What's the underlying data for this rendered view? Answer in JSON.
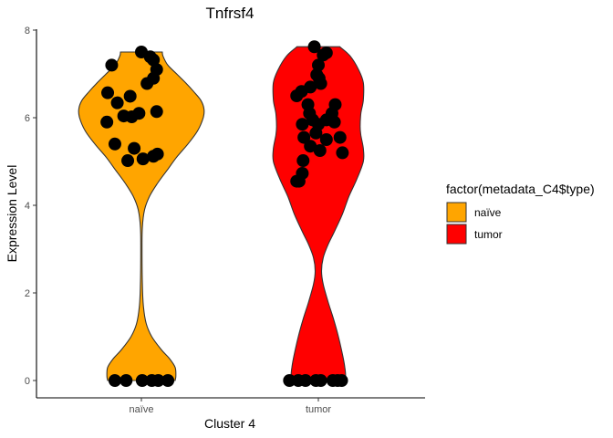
{
  "chart_data": {
    "type": "violin",
    "title": "Tnfrsf4",
    "xlabel": "Cluster 4",
    "ylabel": "Expression Level",
    "ylim": [
      0,
      8
    ],
    "yticks": [
      0,
      2,
      4,
      6,
      8
    ],
    "categories": [
      "naïve",
      "tumor"
    ],
    "legend": {
      "title": "factor(metadata_C4$type)",
      "position": "right",
      "entries": [
        {
          "label": "naïve",
          "color": "#FFA500"
        },
        {
          "label": "tumor",
          "color": "#FF0000"
        }
      ]
    },
    "grid": false,
    "series": [
      {
        "category": "naïve",
        "color": "#FFA500",
        "points": [
          {
            "x": 0.0,
            "y": 7.5
          },
          {
            "x": 0.11,
            "y": 7.39
          },
          {
            "x": 0.19,
            "y": 7.1
          },
          {
            "x": 0.15,
            "y": 7.32
          },
          {
            "x": -0.37,
            "y": 7.2
          },
          {
            "x": 0.07,
            "y": 6.78
          },
          {
            "x": 0.15,
            "y": 6.9
          },
          {
            "x": -0.42,
            "y": 6.57
          },
          {
            "x": -0.14,
            "y": 6.49
          },
          {
            "x": -0.3,
            "y": 6.34
          },
          {
            "x": -0.22,
            "y": 6.04
          },
          {
            "x": -0.03,
            "y": 6.1
          },
          {
            "x": 0.19,
            "y": 6.14
          },
          {
            "x": -0.43,
            "y": 5.9
          },
          {
            "x": -0.12,
            "y": 6.02
          },
          {
            "x": -0.33,
            "y": 5.4
          },
          {
            "x": -0.09,
            "y": 5.3
          },
          {
            "x": 0.2,
            "y": 5.17
          },
          {
            "x": 0.15,
            "y": 5.12
          },
          {
            "x": -0.17,
            "y": 5.02
          },
          {
            "x": 0.02,
            "y": 5.06
          },
          {
            "x": -0.33,
            "y": 0
          },
          {
            "x": -0.19,
            "y": 0
          },
          {
            "x": 0.01,
            "y": 0
          },
          {
            "x": 0.13,
            "y": 0
          },
          {
            "x": 0.21,
            "y": 0
          },
          {
            "x": 0.33,
            "y": 0
          }
        ],
        "density": [
          {
            "y": 0.0,
            "w": 0.42
          },
          {
            "y": 0.1,
            "w": 0.43
          },
          {
            "y": 0.3,
            "w": 0.42
          },
          {
            "y": 0.5,
            "w": 0.35
          },
          {
            "y": 0.7,
            "w": 0.25
          },
          {
            "y": 1.0,
            "w": 0.13
          },
          {
            "y": 1.3,
            "w": 0.06
          },
          {
            "y": 1.7,
            "w": 0.025
          },
          {
            "y": 2.2,
            "w": 0.012
          },
          {
            "y": 3.0,
            "w": 0.008
          },
          {
            "y": 3.5,
            "w": 0.012
          },
          {
            "y": 3.9,
            "w": 0.04
          },
          {
            "y": 4.2,
            "w": 0.1
          },
          {
            "y": 4.5,
            "w": 0.2
          },
          {
            "y": 4.8,
            "w": 0.32
          },
          {
            "y": 5.1,
            "w": 0.44
          },
          {
            "y": 5.4,
            "w": 0.58
          },
          {
            "y": 5.7,
            "w": 0.7
          },
          {
            "y": 6.0,
            "w": 0.77
          },
          {
            "y": 6.2,
            "w": 0.78
          },
          {
            "y": 6.4,
            "w": 0.74
          },
          {
            "y": 6.6,
            "w": 0.65
          },
          {
            "y": 6.8,
            "w": 0.55
          },
          {
            "y": 7.0,
            "w": 0.44
          },
          {
            "y": 7.2,
            "w": 0.33
          },
          {
            "y": 7.4,
            "w": 0.27
          },
          {
            "y": 7.5,
            "w": 0.26
          }
        ]
      },
      {
        "category": "tumor",
        "color": "#FF0000",
        "points": [
          {
            "x": -0.05,
            "y": 7.62
          },
          {
            "x": 0.06,
            "y": 7.43
          },
          {
            "x": 0.1,
            "y": 7.48
          },
          {
            "x": 0.0,
            "y": 7.2
          },
          {
            "x": -0.02,
            "y": 6.98
          },
          {
            "x": 0.01,
            "y": 6.9
          },
          {
            "x": -0.21,
            "y": 6.6
          },
          {
            "x": -0.27,
            "y": 6.5
          },
          {
            "x": -0.1,
            "y": 6.7
          },
          {
            "x": 0.03,
            "y": 6.78
          },
          {
            "x": -0.13,
            "y": 6.3
          },
          {
            "x": 0.21,
            "y": 6.3
          },
          {
            "x": -0.11,
            "y": 6.1
          },
          {
            "x": 0.17,
            "y": 6.1
          },
          {
            "x": -0.2,
            "y": 5.85
          },
          {
            "x": -0.07,
            "y": 5.95
          },
          {
            "x": 0.0,
            "y": 5.85
          },
          {
            "x": 0.1,
            "y": 5.95
          },
          {
            "x": 0.2,
            "y": 5.9
          },
          {
            "x": -0.03,
            "y": 5.65
          },
          {
            "x": 0.1,
            "y": 5.5
          },
          {
            "x": 0.27,
            "y": 5.55
          },
          {
            "x": -0.18,
            "y": 5.55
          },
          {
            "x": -0.1,
            "y": 5.35
          },
          {
            "x": 0.02,
            "y": 5.25
          },
          {
            "x": 0.3,
            "y": 5.2
          },
          {
            "x": -0.19,
            "y": 5.02
          },
          {
            "x": -0.2,
            "y": 4.73
          },
          {
            "x": -0.24,
            "y": 4.55
          },
          {
            "x": -0.27,
            "y": 4.55
          },
          {
            "x": -0.36,
            "y": 0
          },
          {
            "x": -0.25,
            "y": 0
          },
          {
            "x": -0.16,
            "y": 0
          },
          {
            "x": -0.03,
            "y": 0
          },
          {
            "x": 0.03,
            "y": 0
          },
          {
            "x": 0.18,
            "y": 0
          },
          {
            "x": 0.24,
            "y": 0
          },
          {
            "x": 0.29,
            "y": 0
          }
        ],
        "density": [
          {
            "y": 0.0,
            "w": 0.33
          },
          {
            "y": 0.1,
            "w": 0.34
          },
          {
            "y": 0.3,
            "w": 0.33
          },
          {
            "y": 0.6,
            "w": 0.3
          },
          {
            "y": 1.0,
            "w": 0.25
          },
          {
            "y": 1.4,
            "w": 0.19
          },
          {
            "y": 1.8,
            "w": 0.12
          },
          {
            "y": 2.2,
            "w": 0.06
          },
          {
            "y": 2.5,
            "w": 0.04
          },
          {
            "y": 2.8,
            "w": 0.06
          },
          {
            "y": 3.1,
            "w": 0.12
          },
          {
            "y": 3.4,
            "w": 0.2
          },
          {
            "y": 3.8,
            "w": 0.3
          },
          {
            "y": 4.2,
            "w": 0.38
          },
          {
            "y": 4.6,
            "w": 0.48
          },
          {
            "y": 5.0,
            "w": 0.56
          },
          {
            "y": 5.3,
            "w": 0.56
          },
          {
            "y": 5.6,
            "w": 0.53
          },
          {
            "y": 5.8,
            "w": 0.52
          },
          {
            "y": 6.1,
            "w": 0.53
          },
          {
            "y": 6.4,
            "w": 0.56
          },
          {
            "y": 6.8,
            "w": 0.56
          },
          {
            "y": 7.1,
            "w": 0.5
          },
          {
            "y": 7.4,
            "w": 0.4
          },
          {
            "y": 7.6,
            "w": 0.28
          },
          {
            "y": 7.62,
            "w": 0.26
          }
        ]
      }
    ]
  }
}
